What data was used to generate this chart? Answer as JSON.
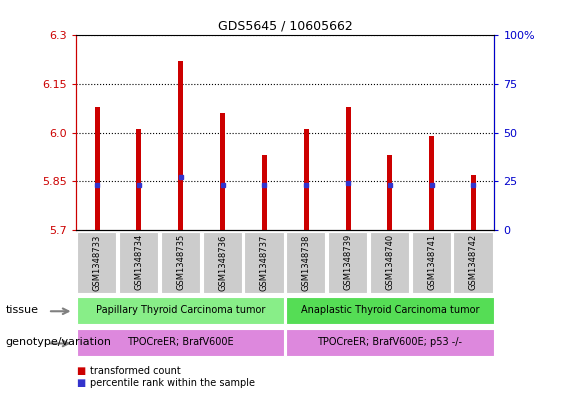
{
  "title": "GDS5645 / 10605662",
  "samples": [
    "GSM1348733",
    "GSM1348734",
    "GSM1348735",
    "GSM1348736",
    "GSM1348737",
    "GSM1348738",
    "GSM1348739",
    "GSM1348740",
    "GSM1348741",
    "GSM1348742"
  ],
  "transformed_counts": [
    6.08,
    6.01,
    6.22,
    6.06,
    5.93,
    6.01,
    6.08,
    5.93,
    5.99,
    5.87
  ],
  "percentile_ranks": [
    23,
    23,
    27,
    23,
    23,
    23,
    24,
    23,
    23,
    23
  ],
  "ylim": [
    5.7,
    6.3
  ],
  "yticks": [
    5.7,
    5.85,
    6.0,
    6.15,
    6.3
  ],
  "right_yticks": [
    0,
    25,
    50,
    75,
    100
  ],
  "bar_color": "#cc0000",
  "dot_color": "#3333cc",
  "bar_bottom": 5.7,
  "bar_width": 0.12,
  "tissue_groups": [
    {
      "label": "Papillary Thyroid Carcinoma tumor",
      "start": 0,
      "end": 5,
      "color": "#88ee88"
    },
    {
      "label": "Anaplastic Thyroid Carcinoma tumor",
      "start": 5,
      "end": 10,
      "color": "#55dd55"
    }
  ],
  "genotype_groups": [
    {
      "label": "TPOCreER; BrafV600E",
      "start": 0,
      "end": 5,
      "color": "#dd88dd"
    },
    {
      "label": "TPOCreER; BrafV600E; p53 -/-",
      "start": 5,
      "end": 10,
      "color": "#dd88dd"
    }
  ],
  "legend_items": [
    {
      "color": "#cc0000",
      "label": "transformed count"
    },
    {
      "color": "#3333cc",
      "label": "percentile rank within the sample"
    }
  ],
  "annotation_tissue": "tissue",
  "annotation_genotype": "genotype/variation",
  "tick_color_left": "#cc0000",
  "tick_color_right": "#0000cc",
  "sample_box_color": "#cccccc",
  "plot_area_color": "#ffffff"
}
